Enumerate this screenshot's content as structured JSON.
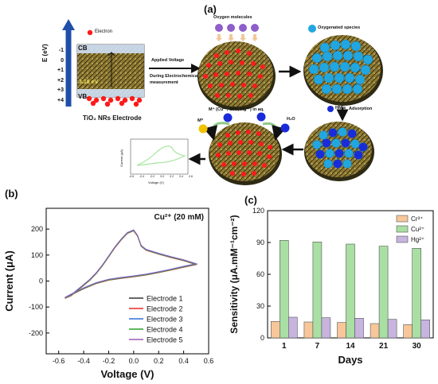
{
  "panel_a": {
    "label": "(a)",
    "energy_axis": {
      "title": "E (eV)",
      "ticks": [
        "-1",
        "0",
        "+1",
        "+2",
        "+3",
        "+4"
      ]
    },
    "band_labels": {
      "cb": "CB",
      "vb": "VB",
      "gap": "3.18 eV"
    },
    "electron_legend": "Electron",
    "electrode_caption": "TiO₂ NRs Electrode",
    "arrow1_top": "Applied Voltage",
    "arrow1_bottom": "During Electrochemical measurement",
    "oxygen_label": "Oxygen molecules",
    "oxygenated_label": "Oxygenated species",
    "hmis_label": "HMIs",
    "adsorption_label": "Adsorption",
    "metal_ions_label": "M⁺ (Cu²⁺, Cr³⁺, Hg²⁺) in aq.",
    "m0_label": "M⁰",
    "h2o_label": "H₂O",
    "inset": {
      "ylabel": "Current (μA)",
      "xlabel": "Voltage (V)",
      "ticks": [
        "-0.6",
        "-0.4",
        "-0.2",
        "0.0",
        "0.2",
        "0.4",
        "0.6"
      ]
    }
  },
  "colors": {
    "electron": "#ff1a1a",
    "oxygen": "#8e5ec9",
    "oxygenated": "#22a6e0",
    "hmi": "#1a2bd9",
    "m0": "#f2c200",
    "cb_band": "#cfe0f7",
    "axis_arrow": "#1f4fa8"
  },
  "chart_data": [
    {
      "panel": "(b)",
      "type": "line",
      "annotation": "Cu²⁺ (20 mM)",
      "xlabel": "Voltage (V)",
      "ylabel": "Current (μA)",
      "xlim": [
        -0.7,
        0.6
      ],
      "ylim": [
        -280,
        280
      ],
      "xticks": [
        -0.6,
        -0.4,
        -0.2,
        0.0,
        0.2,
        0.4,
        0.6
      ],
      "xtick_labels": [
        "-0.6",
        "-0.4",
        "-0.2",
        "0.0",
        "0.2",
        "0.4",
        "0.6"
      ],
      "yticks": [
        -200,
        -100,
        0,
        100,
        200
      ],
      "ytick_labels": [
        "-200",
        "-100",
        "0",
        "100",
        "200"
      ],
      "legend_position": "bottom-right",
      "forward_scan": [
        [
          -0.55,
          -65
        ],
        [
          -0.5,
          -55
        ],
        [
          -0.45,
          -35
        ],
        [
          -0.4,
          -15
        ],
        [
          -0.35,
          5
        ],
        [
          -0.3,
          30
        ],
        [
          -0.25,
          60
        ],
        [
          -0.2,
          95
        ],
        [
          -0.15,
          130
        ],
        [
          -0.1,
          160
        ],
        [
          -0.05,
          185
        ],
        [
          0.0,
          195
        ],
        [
          0.03,
          175
        ],
        [
          0.06,
          135
        ],
        [
          0.1,
          120
        ],
        [
          0.2,
          105
        ],
        [
          0.3,
          92
        ],
        [
          0.4,
          80
        ],
        [
          0.5,
          65
        ]
      ],
      "reverse_scan": [
        [
          0.5,
          65
        ],
        [
          0.4,
          55
        ],
        [
          0.3,
          44
        ],
        [
          0.2,
          34
        ],
        [
          0.1,
          25
        ],
        [
          0.0,
          18
        ],
        [
          -0.1,
          12
        ],
        [
          -0.2,
          5
        ],
        [
          -0.3,
          -8
        ],
        [
          -0.4,
          -28
        ],
        [
          -0.5,
          -52
        ],
        [
          -0.55,
          -65
        ]
      ],
      "series": [
        {
          "name": "Electrode 1",
          "color": "#333333",
          "offset": 0
        },
        {
          "name": "Electrode 2",
          "color": "#e8262a",
          "offset": -2
        },
        {
          "name": "Electrode 3",
          "color": "#2b6fd8",
          "offset": 2
        },
        {
          "name": "Electrode 4",
          "color": "#2ca02c",
          "offset": -1
        },
        {
          "name": "Electrode 5",
          "color": "#9b59b6",
          "offset": 1
        }
      ]
    },
    {
      "panel": "(c)",
      "type": "bar",
      "xlabel": "Days",
      "ylabel": "Sensitivity (μA.mM⁻¹cm⁻²)",
      "categories": [
        "1",
        "7",
        "14",
        "21",
        "30"
      ],
      "ylim": [
        0,
        120
      ],
      "yticks": [
        0,
        30,
        60,
        90,
        120
      ],
      "ytick_labels": [
        "0",
        "30",
        "60",
        "90",
        "120"
      ],
      "legend_position": "top-right",
      "series": [
        {
          "name": "Cr³⁺",
          "color": "#f7c79a",
          "values": [
            15.5,
            15,
            14.5,
            13.5,
            12.5
          ]
        },
        {
          "name": "Cu²⁺",
          "color": "#a9dfa3",
          "values": [
            92,
            90.5,
            88.5,
            86.5,
            84.5
          ]
        },
        {
          "name": "Hg²⁺",
          "color": "#c7b4df",
          "values": [
            19.5,
            19,
            18.5,
            17.5,
            17
          ]
        }
      ]
    }
  ]
}
